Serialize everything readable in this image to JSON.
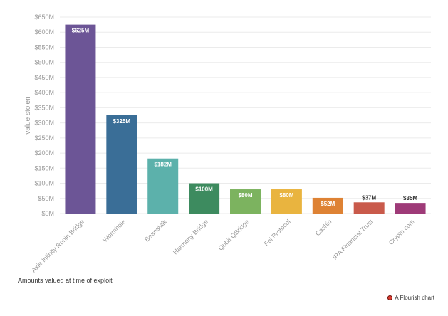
{
  "chart_data": {
    "type": "bar",
    "title": "",
    "xlabel": "",
    "ylabel": "value stolen",
    "ylim": [
      0,
      650
    ],
    "yticks": [
      {
        "value": 0,
        "label": "$0M"
      },
      {
        "value": 50,
        "label": "$50M"
      },
      {
        "value": 100,
        "label": "$100M"
      },
      {
        "value": 150,
        "label": "$150M"
      },
      {
        "value": 200,
        "label": "$200M"
      },
      {
        "value": 250,
        "label": "$250M"
      },
      {
        "value": 300,
        "label": "$300M"
      },
      {
        "value": 350,
        "label": "$350M"
      },
      {
        "value": 400,
        "label": "$400M"
      },
      {
        "value": 450,
        "label": "$450M"
      },
      {
        "value": 500,
        "label": "$500M"
      },
      {
        "value": 550,
        "label": "$550M"
      },
      {
        "value": 600,
        "label": "$600M"
      },
      {
        "value": 650,
        "label": "$650M"
      }
    ],
    "grid": true,
    "categories": [
      "Axie Infinity Ronin Bridge",
      "Wormhole",
      "Beanstalk",
      "Harmony Bridge",
      "Qubit QBridge",
      "Fei Protocol",
      "Cashio",
      "IRA Financial Trust",
      "Crypto.com"
    ],
    "values": [
      625,
      325,
      182,
      100,
      80,
      80,
      52,
      37,
      35
    ],
    "data_labels": [
      "$625M",
      "$325M",
      "$182M",
      "$100M",
      "$80M",
      "$80M",
      "$52M",
      "$37M",
      "$35M"
    ],
    "colors": [
      "#6c5596",
      "#3a6e97",
      "#5cb1ab",
      "#3d8b5f",
      "#7cb35f",
      "#e9b43f",
      "#de8234",
      "#c95a4b",
      "#9e3a78"
    ]
  },
  "footnote": "Amounts valued at time of exploit",
  "credit": "A Flourish chart"
}
